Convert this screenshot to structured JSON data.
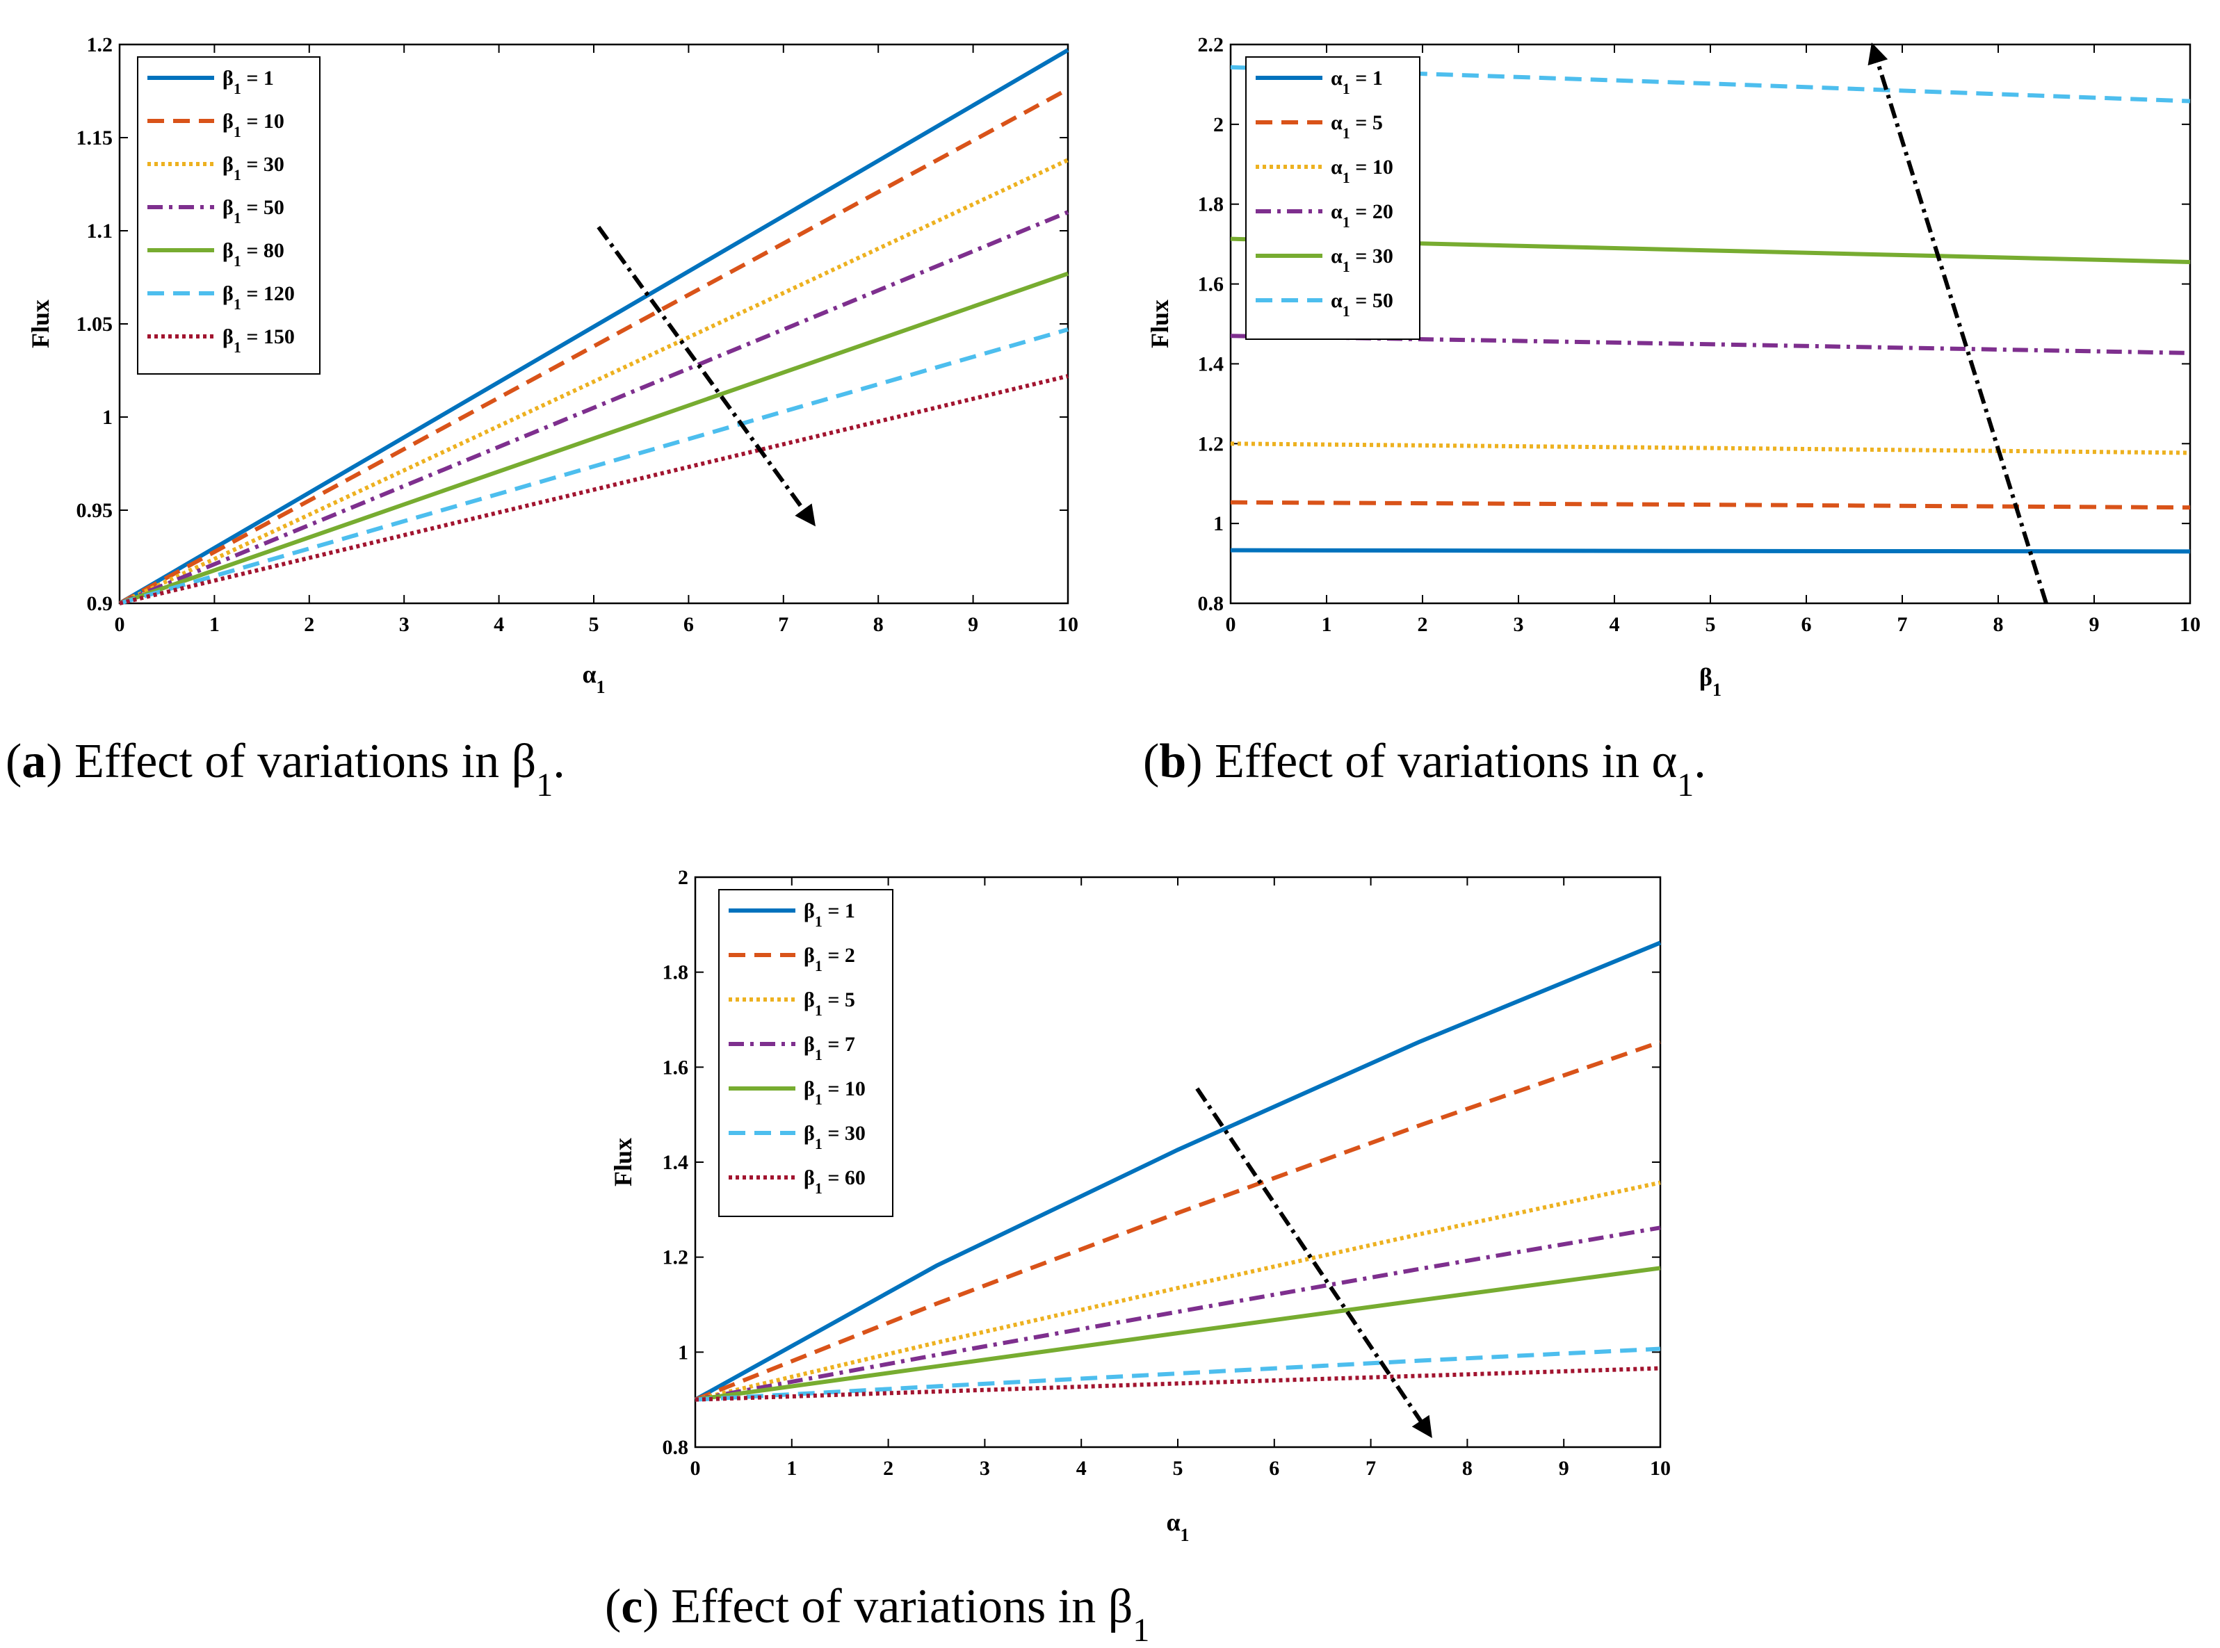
{
  "chart_data": [
    {
      "type": "line",
      "caption_letter": "a",
      "caption_text": "Effect of variations in β",
      "caption_sub": "1",
      "caption_end": ".",
      "xlabel": "α",
      "xlabel_sub": "1",
      "ylabel": "Flux",
      "xlim": [
        0,
        10
      ],
      "ylim": [
        0.9,
        1.2
      ],
      "xticks": [
        "0",
        "1",
        "2",
        "3",
        "4",
        "5",
        "6",
        "7",
        "8",
        "9",
        "10"
      ],
      "yticks": [
        "0.9",
        "0.95",
        "1",
        "1.05",
        "1.1",
        "1.15",
        "1.2"
      ],
      "legend_position": "top-left",
      "x": [
        0,
        10
      ],
      "series": [
        {
          "name": "β",
          "sub": "1",
          "eq": " = 1",
          "color": "#0072BD",
          "style": "solid",
          "values": [
            0.9,
            1.197
          ]
        },
        {
          "name": "β",
          "sub": "1",
          "eq": " = 10",
          "color": "#D95319",
          "style": "dashed",
          "values": [
            0.9,
            1.176
          ]
        },
        {
          "name": "β",
          "sub": "1",
          "eq": " = 30",
          "color": "#EDB120",
          "style": "dotted",
          "values": [
            0.9,
            1.138
          ]
        },
        {
          "name": "β",
          "sub": "1",
          "eq": " = 50",
          "color": "#7E2F8E",
          "style": "dashdot",
          "values": [
            0.9,
            1.11
          ]
        },
        {
          "name": "β",
          "sub": "1",
          "eq": " = 80",
          "color": "#77AC30",
          "style": "solid",
          "values": [
            0.9,
            1.077
          ]
        },
        {
          "name": "β",
          "sub": "1",
          "eq": " = 120",
          "color": "#4DBEEE",
          "style": "dashed",
          "values": [
            0.9,
            1.047
          ]
        },
        {
          "name": "β",
          "sub": "1",
          "eq": " = 150",
          "color": "#A2142F",
          "style": "dotted",
          "values": [
            0.9,
            1.022
          ]
        }
      ],
      "arrow": {
        "from": [
          5.05,
          1.102
        ],
        "to": [
          7.3,
          0.944
        ]
      }
    },
    {
      "type": "line",
      "caption_letter": "b",
      "caption_text": "Effect of variations in α",
      "caption_sub": "1",
      "caption_end": ".",
      "xlabel": "β",
      "xlabel_sub": "1",
      "ylabel": "Flux",
      "xlim": [
        0,
        10
      ],
      "ylim": [
        0.8,
        2.2
      ],
      "xticks": [
        "0",
        "1",
        "2",
        "3",
        "4",
        "5",
        "6",
        "7",
        "8",
        "9",
        "10"
      ],
      "yticks": [
        "0.8",
        "1",
        "1.2",
        "1.4",
        "1.6",
        "1.8",
        "2",
        "2.2"
      ],
      "legend_position": "top-left",
      "x": [
        0,
        5,
        10
      ],
      "series": [
        {
          "name": "α",
          "sub": "1",
          "eq": " = 1",
          "color": "#0072BD",
          "style": "solid",
          "values": [
            0.933,
            0.931,
            0.93
          ]
        },
        {
          "name": "α",
          "sub": "1",
          "eq": " = 5",
          "color": "#D95319",
          "style": "dashed",
          "values": [
            1.053,
            1.047,
            1.04
          ]
        },
        {
          "name": "α",
          "sub": "1",
          "eq": " = 10",
          "color": "#EDB120",
          "style": "dotted",
          "values": [
            1.2,
            1.189,
            1.177
          ]
        },
        {
          "name": "α",
          "sub": "1",
          "eq": " = 20",
          "color": "#7E2F8E",
          "style": "dashdot",
          "values": [
            1.47,
            1.449,
            1.427
          ]
        },
        {
          "name": "α",
          "sub": "1",
          "eq": " = 30",
          "color": "#77AC30",
          "style": "solid",
          "values": [
            1.713,
            1.684,
            1.655
          ]
        },
        {
          "name": "α",
          "sub": "1",
          "eq": " = 50",
          "color": "#4DBEEE",
          "style": "dashed",
          "values": [
            2.143,
            2.102,
            2.058
          ]
        }
      ],
      "arrow": {
        "from": [
          8.5,
          0.8
        ],
        "to": [
          6.7,
          2.19
        ]
      }
    },
    {
      "type": "line",
      "caption_letter": "c",
      "caption_text": "Effect of variations in β",
      "caption_sub": "1",
      "caption_end": "",
      "xlabel": "α",
      "xlabel_sub": "1",
      "ylabel": "Flux",
      "xlim": [
        0,
        10
      ],
      "ylim": [
        0.8,
        2.0
      ],
      "xticks": [
        "0",
        "1",
        "2",
        "3",
        "4",
        "5",
        "6",
        "7",
        "8",
        "9",
        "10"
      ],
      "yticks": [
        "0.8",
        "1",
        "1.2",
        "1.4",
        "1.6",
        "1.8",
        "2"
      ],
      "legend_position": "top-left",
      "x": [
        0,
        2.5,
        5,
        7.5,
        10
      ],
      "series": [
        {
          "name": "β",
          "sub": "1",
          "eq": " = 1",
          "color": "#0072BD",
          "style": "solid",
          "values": [
            0.9,
            1.182,
            1.426,
            1.653,
            1.862
          ]
        },
        {
          "name": "β",
          "sub": "1",
          "eq": " = 2",
          "color": "#D95319",
          "style": "dashed",
          "values": [
            0.9,
            1.102,
            1.293,
            1.477,
            1.653
          ]
        },
        {
          "name": "β",
          "sub": "1",
          "eq": " = 5",
          "color": "#EDB120",
          "style": "dotted",
          "values": [
            0.9,
            1.02,
            1.135,
            1.248,
            1.357
          ]
        },
        {
          "name": "β",
          "sub": "1",
          "eq": " = 7",
          "color": "#7E2F8E",
          "style": "dashdot",
          "values": [
            0.9,
            0.994,
            1.085,
            1.175,
            1.262
          ]
        },
        {
          "name": "β",
          "sub": "1",
          "eq": " = 10",
          "color": "#77AC30",
          "style": "solid",
          "values": [
            0.9,
            0.97,
            1.04,
            1.109,
            1.177
          ]
        },
        {
          "name": "β",
          "sub": "1",
          "eq": " = 30",
          "color": "#4DBEEE",
          "style": "dashed",
          "values": [
            0.9,
            0.928,
            0.955,
            0.982,
            1.007
          ]
        },
        {
          "name": "β",
          "sub": "1",
          "eq": " = 60",
          "color": "#A2142F",
          "style": "dotted",
          "values": [
            0.9,
            0.917,
            0.934,
            0.95,
            0.966
          ]
        }
      ],
      "arrow": {
        "from": [
          5.2,
          1.555
        ],
        "to": [
          7.6,
          0.83
        ]
      }
    }
  ]
}
